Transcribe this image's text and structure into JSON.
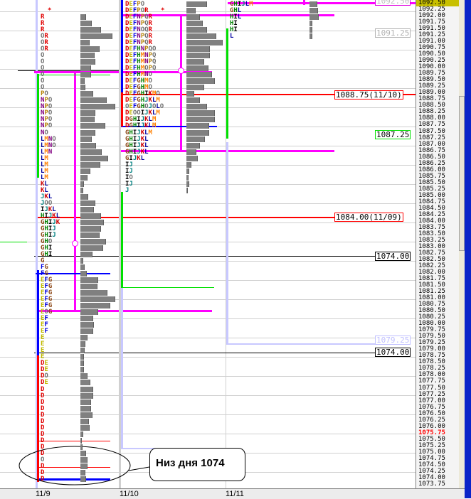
{
  "chart_data": {
    "type": "market-profile",
    "price_tick": 0.25,
    "ylim": [
      1073.75,
      1092.5
    ],
    "axis_labels": [
      "1092.50",
      "1092.25",
      "1092.00",
      "1091.75",
      "1091.50",
      "1091.25",
      "1091.00",
      "1090.75",
      "1090.50",
      "1090.25",
      "1090.00",
      "1089.75",
      "1089.50",
      "1089.25",
      "1089.00",
      "1088.75",
      "1088.50",
      "1088.25",
      "1088.00",
      "1087.75",
      "1087.50",
      "1087.25",
      "1087.00",
      "1086.75",
      "1086.50",
      "1086.25",
      "1086.00",
      "1085.75",
      "1085.50",
      "1085.25",
      "1085.00",
      "1084.75",
      "1084.50",
      "1084.25",
      "1084.00",
      "1083.75",
      "1083.50",
      "1083.25",
      "1083.00",
      "1082.75",
      "1082.50",
      "1082.25",
      "1082.00",
      "1081.75",
      "1081.50",
      "1081.25",
      "1081.00",
      "1080.75",
      "1080.50",
      "1080.25",
      "1080.00",
      "1079.75",
      "1079.50",
      "1079.25",
      "1079.00",
      "1078.75",
      "1078.50",
      "1078.25",
      "1078.00",
      "1077.75",
      "1077.50",
      "1077.25",
      "1077.00",
      "1076.75",
      "1076.50",
      "1076.25",
      "1076.00",
      "1075.75",
      "1075.50",
      "1075.25",
      "1075.00",
      "1074.75",
      "1074.50",
      "1074.25",
      "1074.00",
      "1073.75"
    ],
    "current_price": "1075.75",
    "highlighted_top_label": "1092.50",
    "x_dates": [
      "11/9",
      "11/10",
      "11/11"
    ],
    "letter_colors": {
      "D": "#e00000",
      "E": "#c0b800",
      "F": "#0000e0",
      "G": "#8b4513",
      "H": "#008000",
      "I": "#000000",
      "J": "#008080",
      "K": "#d00000",
      "L": "#0000a0",
      "M": "#ff8000",
      "N": "#800080",
      "O": "#707070",
      "P": "#b8860b",
      "Q": "#707070",
      "R": "#e00000"
    },
    "profiles": [
      {
        "date": "11/9",
        "high": 1092.0,
        "low": 1074.0,
        "rows": [
          [
            "1092.00",
            "R"
          ],
          [
            "1091.75",
            "R"
          ],
          [
            "1091.50",
            "R"
          ],
          [
            "1091.25",
            "OR"
          ],
          [
            "1091.00",
            "OR"
          ],
          [
            "1090.75",
            "OR"
          ],
          [
            "1090.50",
            "O"
          ],
          [
            "1090.25",
            "O"
          ],
          [
            "1090.00",
            "O"
          ],
          [
            "1089.75",
            "O"
          ],
          [
            "1089.50",
            "O"
          ],
          [
            "1089.25",
            "O"
          ],
          [
            "1089.00",
            "PO"
          ],
          [
            "1088.75",
            "NPO"
          ],
          [
            "1088.50",
            "NPO"
          ],
          [
            "1088.25",
            "NPO"
          ],
          [
            "1088.00",
            "NPO"
          ],
          [
            "1087.75",
            "NPO"
          ],
          [
            "1087.50",
            "NO"
          ],
          [
            "1087.25",
            "LMNO"
          ],
          [
            "1087.00",
            "LMNO"
          ],
          [
            "1086.75",
            "LMN"
          ],
          [
            "1086.50",
            "LM"
          ],
          [
            "1086.25",
            "LM"
          ],
          [
            "1086.00",
            "LM"
          ],
          [
            "1085.75",
            "LM"
          ],
          [
            "1085.50",
            "KL"
          ],
          [
            "1085.25",
            "KL"
          ],
          [
            "1085.00",
            "JKL"
          ],
          [
            "1084.75",
            "JOO"
          ],
          [
            "1084.50",
            "IJKL"
          ],
          [
            "1084.25",
            "HIJKL"
          ],
          [
            "1084.00",
            "GHIJK"
          ],
          [
            "1083.75",
            "GHIJ"
          ],
          [
            "1083.50",
            "GHIJ"
          ],
          [
            "1083.25",
            "GHO"
          ],
          [
            "1083.00",
            "GHI"
          ],
          [
            "1082.75",
            "GHI"
          ],
          [
            "1082.50",
            "G"
          ],
          [
            "1082.25",
            "FG"
          ],
          [
            "1082.00",
            "FG"
          ],
          [
            "1081.75",
            "EFG"
          ],
          [
            "1081.50",
            "EFG"
          ],
          [
            "1081.25",
            "EFG"
          ],
          [
            "1081.00",
            "EFG"
          ],
          [
            "1080.75",
            "EFG"
          ],
          [
            "1080.50",
            "EOG"
          ],
          [
            "1080.25",
            "EF"
          ],
          [
            "1080.00",
            "EF"
          ],
          [
            "1079.75",
            "EF"
          ],
          [
            "1079.50",
            "E"
          ],
          [
            "1079.25",
            "E"
          ],
          [
            "1079.00",
            "E"
          ],
          [
            "1078.75",
            "E"
          ],
          [
            "1078.50",
            "DE"
          ],
          [
            "1078.25",
            "DE"
          ],
          [
            "1078.00",
            "DO"
          ],
          [
            "1077.75",
            "DE"
          ],
          [
            "1077.50",
            "D"
          ],
          [
            "1077.25",
            "D"
          ],
          [
            "1077.00",
            "D"
          ],
          [
            "1076.75",
            "D"
          ],
          [
            "1076.50",
            "D"
          ],
          [
            "1076.25",
            "D"
          ],
          [
            "1076.00",
            "D"
          ],
          [
            "1075.75",
            "D"
          ],
          [
            "1075.50",
            "D"
          ],
          [
            "1075.25",
            "D"
          ],
          [
            "1075.00",
            "D"
          ],
          [
            "1074.75",
            "O"
          ],
          [
            "1074.50",
            "D"
          ],
          [
            "1074.25",
            "D"
          ],
          [
            "1074.00",
            "D"
          ]
        ],
        "volume": {
          "1092.00": 7,
          "1091.75": 15,
          "1091.50": 28,
          "1091.25": 44,
          "1091.00": 12,
          "1090.75": 26,
          "1090.50": 19,
          "1090.25": 20,
          "1090.00": 14,
          "1089.75": 14,
          "1089.50": 5,
          "1089.25": 6,
          "1089.00": 17,
          "1088.75": 36,
          "1088.50": 48,
          "1088.25": 20,
          "1088.00": 19,
          "1087.75": 34,
          "1087.50": 20,
          "1087.25": 15,
          "1087.00": 21,
          "1086.75": 29,
          "1086.50": 38,
          "1086.25": 27,
          "1086.00": 13,
          "1085.75": 9,
          "1085.50": 4,
          "1085.25": 3,
          "1085.00": 10,
          "1084.75": 20,
          "1084.50": 18,
          "1084.25": 28,
          "1084.00": 32,
          "1083.75": 28,
          "1083.50": 26,
          "1083.25": 35,
          "1083.00": 31,
          "1082.75": 16,
          "1082.50": 3,
          "1082.25": 5,
          "1082.00": 8,
          "1081.75": 24,
          "1081.50": 23,
          "1081.25": 37,
          "1081.00": 48,
          "1080.75": 41,
          "1080.50": 24,
          "1080.25": 17,
          "1080.00": 18,
          "1079.75": 17,
          "1079.50": 9,
          "1079.25": 6,
          "1079.00": 5,
          "1078.75": 4,
          "1078.50": 4,
          "1078.25": 4,
          "1078.00": 9,
          "1077.75": 13,
          "1077.50": 17,
          "1077.25": 17,
          "1077.00": 14,
          "1076.75": 14,
          "1076.50": 16,
          "1076.25": 11,
          "1076.00": 12,
          "1075.75": 3,
          "1075.50": 1,
          "1075.25": 2,
          "1075.00": 7,
          "1074.75": 9,
          "1074.50": 9,
          "1074.25": 6,
          "1074.00": 7
        }
      },
      {
        "date": "11/10",
        "high": 1092.5,
        "low": 1085.25,
        "rows": [
          [
            "1092.50",
            "DEFPO"
          ],
          [
            "1092.25",
            "DEFPOR"
          ],
          [
            "1092.00",
            "DEFNPQR"
          ],
          [
            "1091.75",
            "DEFNPQR"
          ],
          [
            "1091.50",
            "DEFNOQR"
          ],
          [
            "1091.25",
            "DEFNPQR"
          ],
          [
            "1091.00",
            "DEFNPQR"
          ],
          [
            "1090.75",
            "DEFHNPQO"
          ],
          [
            "1090.50",
            "DEFHMNPQ"
          ],
          [
            "1090.25",
            "DEFHMNPQ"
          ],
          [
            "1090.00",
            "DEFHMOPQ"
          ],
          [
            "1089.75",
            "DEFHMNO"
          ],
          [
            "1089.50",
            "DEFGHMO"
          ],
          [
            "1089.25",
            "DEFGHMO"
          ],
          [
            "1089.00",
            "DEFGHIKMO"
          ],
          [
            "1088.75",
            "DEFGHJKLM"
          ],
          [
            "1088.50",
            "OEFGHOJOLO"
          ],
          [
            "1088.25",
            "DEOOIJKLM"
          ],
          [
            "1088.00",
            "DGHIJKLM"
          ],
          [
            "1087.75",
            "DGHIJKLM"
          ],
          [
            "1087.50",
            "GHIJKLM"
          ],
          [
            "1087.25",
            "GHIJKL"
          ],
          [
            "1087.00",
            "GHIJKL"
          ],
          [
            "1086.75",
            "GHIJKL"
          ],
          [
            "1086.50",
            "GIJKL"
          ],
          [
            "1086.25",
            "IJ"
          ],
          [
            "1086.00",
            "IJ"
          ],
          [
            "1085.75",
            "IO"
          ],
          [
            "1085.50",
            "IJ"
          ],
          [
            "1085.25",
            "J"
          ]
        ],
        "volume": {
          "1092.50": 28,
          "1092.25": 12,
          "1092.00": 18,
          "1091.75": 22,
          "1091.50": 28,
          "1091.25": 41,
          "1091.00": 50,
          "1090.75": 32,
          "1090.50": 32,
          "1090.25": 24,
          "1090.00": 30,
          "1089.75": 35,
          "1089.50": 39,
          "1089.25": 24,
          "1089.00": 10,
          "1088.75": 18,
          "1088.50": 28,
          "1088.25": 39,
          "1088.00": 39,
          "1087.75": 31,
          "1087.50": 31,
          "1087.25": 25,
          "1087.00": 18,
          "1086.75": 13,
          "1086.50": 15,
          "1086.25": 6,
          "1086.00": 3,
          "1085.75": 2,
          "1085.50": 3,
          "1085.25": 1
        }
      },
      {
        "date": "11/11",
        "high": 1092.5,
        "low": 1091.25,
        "rows": [
          [
            "1092.50",
            "GHIJLM"
          ],
          [
            "1092.25",
            "GHL"
          ],
          [
            "1092.00",
            "HIL"
          ],
          [
            "1091.75",
            "HI"
          ],
          [
            "1091.50",
            "HI"
          ],
          [
            "1091.25",
            "L"
          ]
        ],
        "volume": {
          "1092.50": 10,
          "1092.25": 11,
          "1092.00": 12,
          "1091.75": 3,
          "1091.50": 3,
          "1091.25": 3
        }
      }
    ],
    "levels": [
      {
        "label": "1092.50",
        "color": "#e000e0"
      },
      {
        "label": "1091.25",
        "color": "#b0b0b0"
      },
      {
        "label": "1088.75(11/10)",
        "color": "#ff0000"
      },
      {
        "label": "1087.25",
        "color": "#00e000"
      },
      {
        "label": "1084.00(11/09)",
        "color": "#ff0000"
      },
      {
        "label": "1074.00",
        "color": "#000000"
      },
      {
        "label": "1079.25",
        "color": "#c0c0ff"
      },
      {
        "label": "1074.00",
        "color": "#000000"
      }
    ],
    "annotation": "Низ дня 1074"
  }
}
